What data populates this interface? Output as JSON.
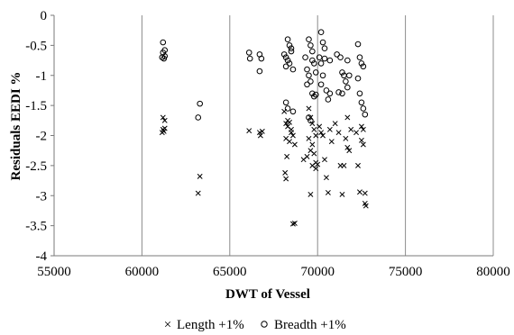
{
  "chart_data": {
    "type": "scatter",
    "xlabel": "DWT of Vessel",
    "ylabel": "Residuals EEDI %",
    "xlim": [
      55000,
      80000
    ],
    "ylim": [
      -4,
      0
    ],
    "xticks": [
      "55000",
      "60000",
      "65000",
      "70000",
      "75000",
      "80000"
    ],
    "yticks": [
      "0",
      "-0.5",
      "-1",
      "-1.5",
      "-2",
      "-2.5",
      "-3",
      "-3.5",
      "-4"
    ],
    "grid": {
      "vertical": true,
      "horizontal": false
    },
    "legend_position": "bottom",
    "series": [
      {
        "name": "Length +1%",
        "marker": "x",
        "points": [
          [
            61200,
            -1.7
          ],
          [
            61300,
            -1.75
          ],
          [
            61200,
            -1.9
          ],
          [
            61300,
            -1.88
          ],
          [
            61150,
            -1.95
          ],
          [
            61250,
            -1.93
          ],
          [
            63300,
            -2.68
          ],
          [
            63200,
            -2.96
          ],
          [
            66100,
            -1.92
          ],
          [
            66700,
            -1.95
          ],
          [
            66850,
            -1.93
          ],
          [
            66750,
            -2.0
          ],
          [
            68100,
            -1.6
          ],
          [
            68200,
            -1.8
          ],
          [
            68300,
            -1.75
          ],
          [
            68400,
            -1.78
          ],
          [
            68500,
            -1.9
          ],
          [
            68600,
            -2.0
          ],
          [
            68200,
            -2.05
          ],
          [
            68400,
            -2.1
          ],
          [
            68250,
            -2.35
          ],
          [
            68150,
            -2.62
          ],
          [
            68200,
            -2.72
          ],
          [
            68300,
            -1.85
          ],
          [
            68500,
            -1.95
          ],
          [
            68700,
            -2.15
          ],
          [
            68600,
            -3.47
          ],
          [
            68700,
            -3.46
          ],
          [
            69200,
            -2.4
          ],
          [
            69400,
            -2.35
          ],
          [
            69500,
            -1.55
          ],
          [
            69600,
            -1.7
          ],
          [
            69700,
            -1.8
          ],
          [
            69800,
            -1.9
          ],
          [
            69900,
            -2.0
          ],
          [
            69500,
            -2.05
          ],
          [
            69700,
            -2.15
          ],
          [
            69600,
            -2.25
          ],
          [
            69800,
            -2.3
          ],
          [
            69900,
            -2.45
          ],
          [
            69700,
            -2.5
          ],
          [
            69600,
            -2.98
          ],
          [
            69900,
            -2.55
          ],
          [
            70000,
            -2.48
          ],
          [
            70100,
            -1.85
          ],
          [
            70200,
            -1.95
          ],
          [
            70300,
            -2.0
          ],
          [
            70400,
            -2.4
          ],
          [
            70500,
            -2.7
          ],
          [
            70600,
            -2.95
          ],
          [
            70700,
            -1.9
          ],
          [
            70800,
            -2.1
          ],
          [
            71000,
            -1.8
          ],
          [
            71200,
            -1.95
          ],
          [
            71300,
            -2.5
          ],
          [
            71400,
            -2.98
          ],
          [
            71500,
            -2.5
          ],
          [
            71600,
            -2.05
          ],
          [
            71700,
            -2.2
          ],
          [
            71800,
            -2.25
          ],
          [
            71900,
            -1.9
          ],
          [
            71700,
            -1.7
          ],
          [
            72200,
            -1.95
          ],
          [
            72300,
            -2.5
          ],
          [
            72400,
            -2.94
          ],
          [
            72500,
            -2.08
          ],
          [
            72600,
            -2.15
          ],
          [
            72700,
            -2.96
          ],
          [
            72700,
            -3.13
          ],
          [
            72750,
            -3.17
          ],
          [
            72600,
            -1.9
          ],
          [
            72500,
            -1.85
          ]
        ]
      },
      {
        "name": "Breadth +1%",
        "marker": "circle",
        "points": [
          [
            61200,
            -0.45
          ],
          [
            61300,
            -0.58
          ],
          [
            61200,
            -0.62
          ],
          [
            61300,
            -0.68
          ],
          [
            61150,
            -0.7
          ],
          [
            61250,
            -0.72
          ],
          [
            63300,
            -1.47
          ],
          [
            63200,
            -1.7
          ],
          [
            66100,
            -0.62
          ],
          [
            66150,
            -0.72
          ],
          [
            66700,
            -0.65
          ],
          [
            66800,
            -0.72
          ],
          [
            66700,
            -0.93
          ],
          [
            68100,
            -0.65
          ],
          [
            68200,
            -0.7
          ],
          [
            68300,
            -0.75
          ],
          [
            68400,
            -0.8
          ],
          [
            68300,
            -0.4
          ],
          [
            68400,
            -0.5
          ],
          [
            68500,
            -0.55
          ],
          [
            68200,
            -0.85
          ],
          [
            68600,
            -0.9
          ],
          [
            68500,
            -0.6
          ],
          [
            68200,
            -1.45
          ],
          [
            68300,
            -1.55
          ],
          [
            68600,
            -1.6
          ],
          [
            69300,
            -0.7
          ],
          [
            69400,
            -0.9
          ],
          [
            69500,
            -0.4
          ],
          [
            69600,
            -0.5
          ],
          [
            69700,
            -0.6
          ],
          [
            69800,
            -0.8
          ],
          [
            69500,
            -1.0
          ],
          [
            69600,
            -1.1
          ],
          [
            69700,
            -1.3
          ],
          [
            69800,
            -1.35
          ],
          [
            69500,
            -1.7
          ],
          [
            69600,
            -1.75
          ],
          [
            69900,
            -0.95
          ],
          [
            69400,
            -1.15
          ],
          [
            69700,
            -0.75
          ],
          [
            69900,
            -1.32
          ],
          [
            70200,
            -0.28
          ],
          [
            70300,
            -0.45
          ],
          [
            70400,
            -0.55
          ],
          [
            70100,
            -0.7
          ],
          [
            70200,
            -0.8
          ],
          [
            70400,
            -0.72
          ],
          [
            70300,
            -1.0
          ],
          [
            70500,
            -1.25
          ],
          [
            70600,
            -1.4
          ],
          [
            70200,
            -1.15
          ],
          [
            70700,
            -0.75
          ],
          [
            70700,
            -1.3
          ],
          [
            71100,
            -0.65
          ],
          [
            71300,
            -0.7
          ],
          [
            71400,
            -0.95
          ],
          [
            71500,
            -1.0
          ],
          [
            71600,
            -1.1
          ],
          [
            71700,
            -1.2
          ],
          [
            71200,
            -1.28
          ],
          [
            71400,
            -1.3
          ],
          [
            71700,
            -0.75
          ],
          [
            71800,
            -1.0
          ],
          [
            72300,
            -0.48
          ],
          [
            72400,
            -0.7
          ],
          [
            72500,
            -0.8
          ],
          [
            72600,
            -0.85
          ],
          [
            72300,
            -1.05
          ],
          [
            72400,
            -1.3
          ],
          [
            72600,
            -1.55
          ],
          [
            72700,
            -1.65
          ],
          [
            72500,
            -1.45
          ]
        ]
      }
    ]
  }
}
